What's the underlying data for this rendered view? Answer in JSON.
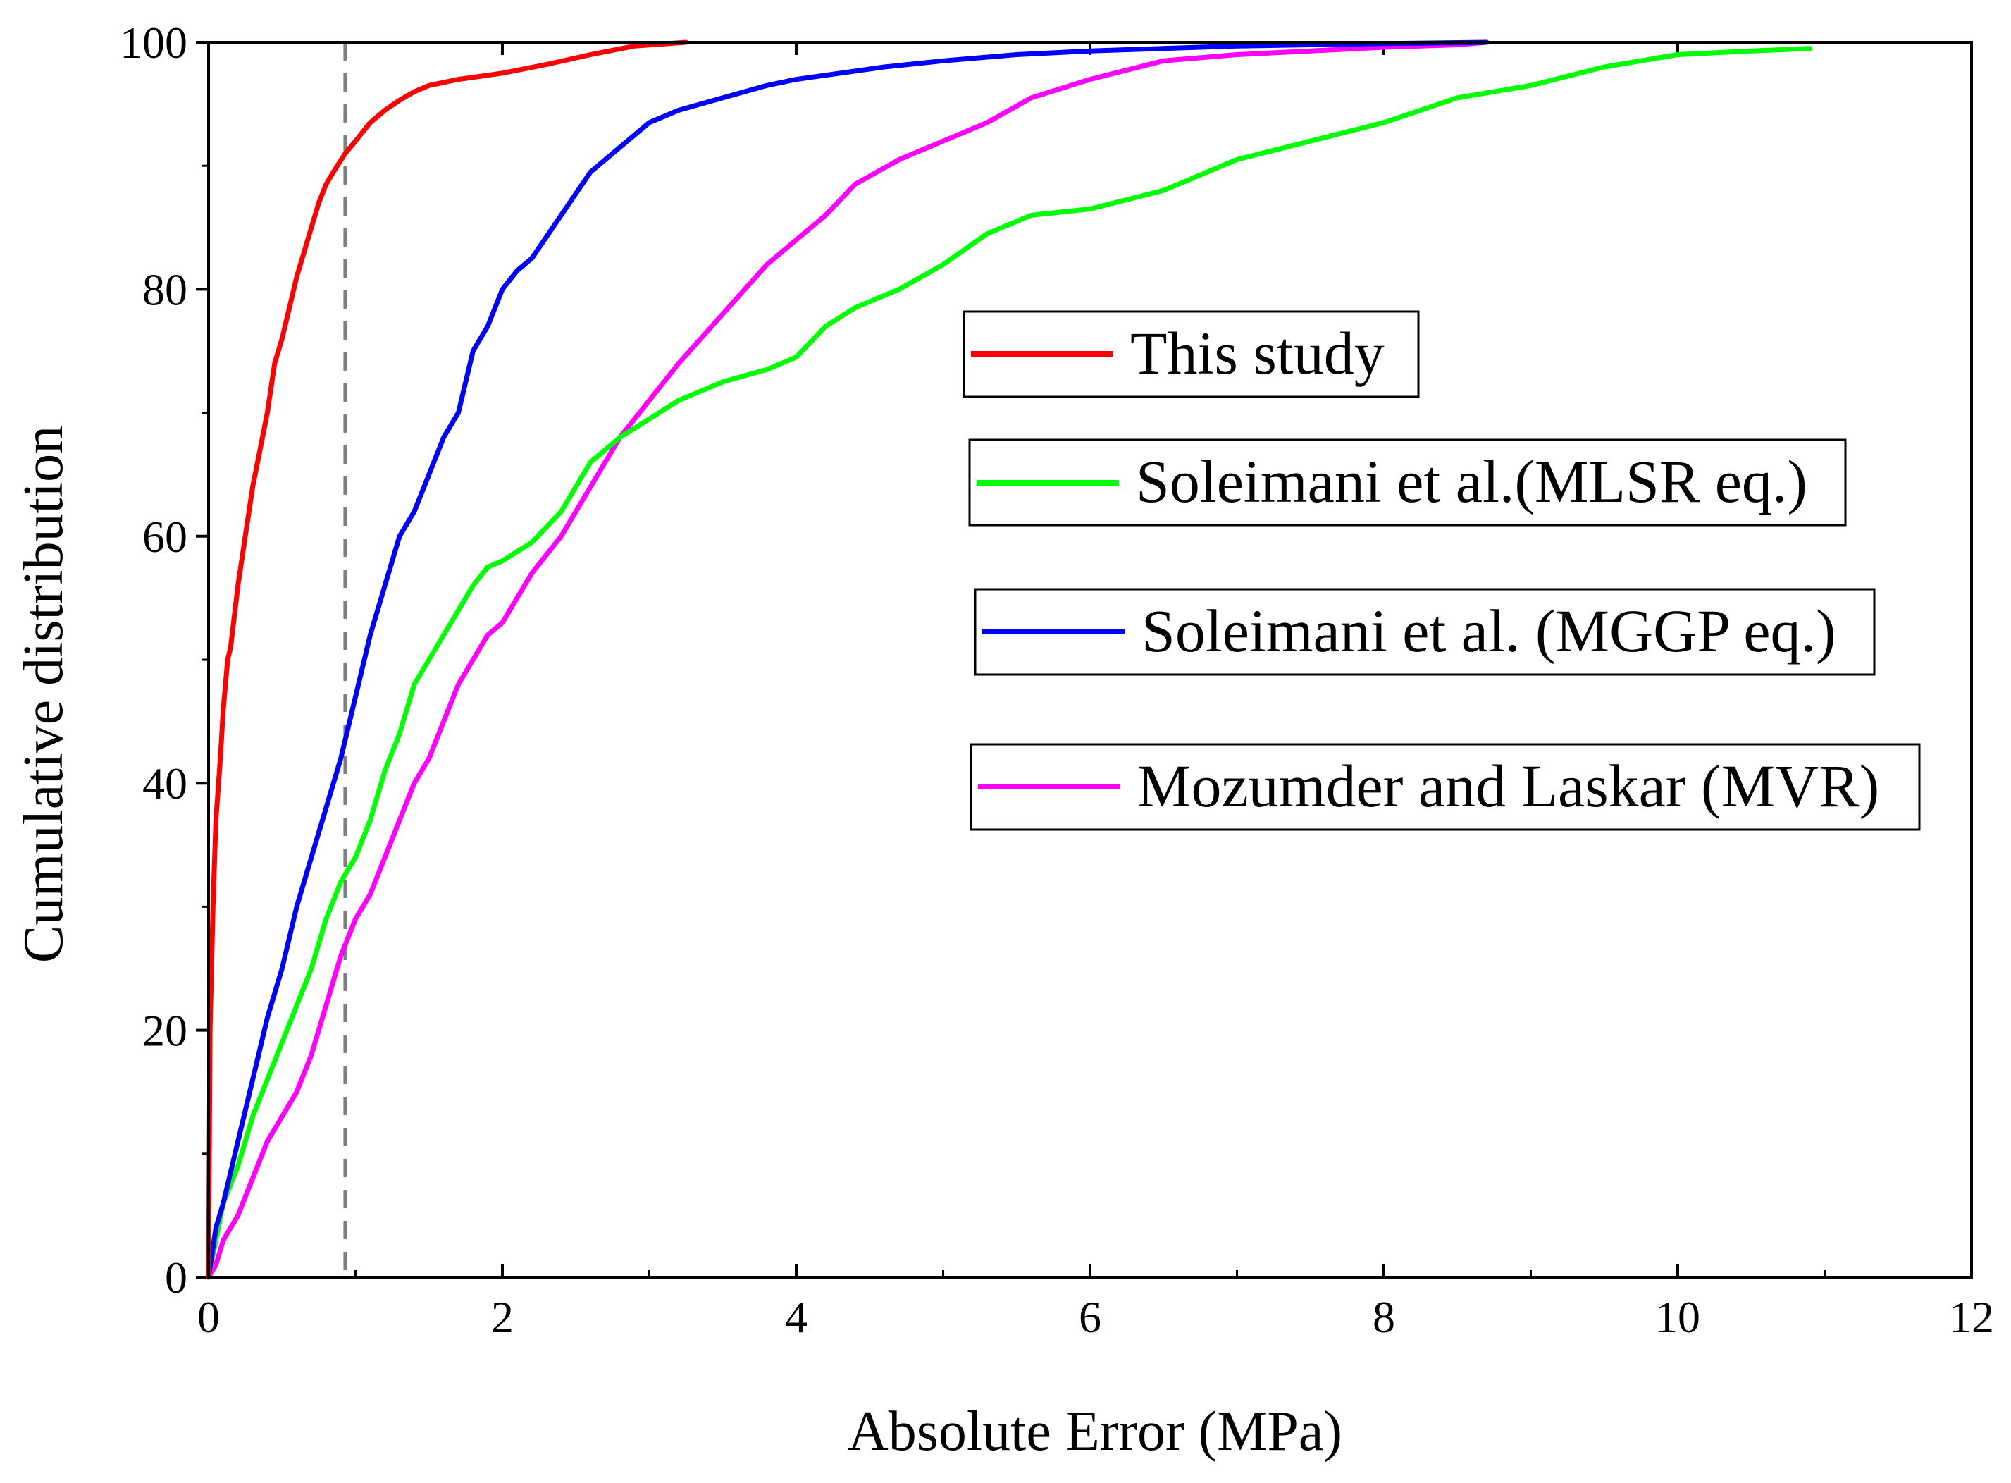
{
  "chart_data": {
    "type": "line",
    "title": "",
    "xlabel": "Absolute Error (MPa)",
    "ylabel": "Cumulative distribution",
    "xlim": [
      0,
      12
    ],
    "ylim": [
      0,
      100
    ],
    "xticks": [
      0,
      2,
      4,
      6,
      8,
      10,
      12
    ],
    "yticks": [
      0,
      20,
      40,
      60,
      80,
      100
    ],
    "grid": false,
    "legend_position": "right-center",
    "reference_line": {
      "x": 0.93,
      "style": "dashed",
      "color": "#808080"
    },
    "series": [
      {
        "name": "This study",
        "color": "#ff0000",
        "x": [
          0,
          0.01,
          0.03,
          0.05,
          0.08,
          0.1,
          0.13,
          0.15,
          0.2,
          0.25,
          0.3,
          0.35,
          0.4,
          0.45,
          0.5,
          0.55,
          0.6,
          0.65,
          0.7,
          0.75,
          0.8,
          0.85,
          0.93,
          1.0,
          1.1,
          1.2,
          1.3,
          1.4,
          1.5,
          1.7,
          2.0,
          2.3,
          2.6,
          2.9,
          3.25
        ],
        "y": [
          0,
          20,
          30,
          37,
          42,
          46,
          50,
          51,
          56,
          60,
          64,
          67,
          70,
          74,
          76,
          78.5,
          81,
          83,
          85,
          87,
          88.5,
          89.5,
          91,
          92,
          93.5,
          94.5,
          95.3,
          96,
          96.5,
          97,
          97.5,
          98.2,
          99,
          99.7,
          100
        ]
      },
      {
        "name": "Soleimani et al.(MLSR eq.)",
        "color": "#00ff00",
        "x": [
          0,
          0.05,
          0.1,
          0.2,
          0.3,
          0.4,
          0.5,
          0.6,
          0.7,
          0.8,
          0.9,
          1.0,
          1.1,
          1.2,
          1.3,
          1.4,
          1.5,
          1.6,
          1.7,
          1.8,
          1.9,
          2.0,
          2.2,
          2.4,
          2.6,
          2.8,
          3.0,
          3.2,
          3.5,
          3.8,
          4.0,
          4.2,
          4.4,
          4.7,
          5.0,
          5.3,
          5.6,
          6.0,
          6.5,
          7.0,
          7.5,
          8.0,
          8.5,
          9.0,
          9.5,
          10.0,
          10.5,
          10.9
        ],
        "y": [
          0,
          3,
          6,
          9,
          13,
          16,
          19,
          22,
          25,
          29,
          32,
          34,
          37,
          41,
          44,
          48,
          50,
          52,
          54,
          56,
          57.5,
          58,
          59.5,
          62,
          66,
          68,
          69.5,
          71,
          72.5,
          73.5,
          74.5,
          77,
          78.5,
          80,
          82,
          84.5,
          86,
          86.5,
          88,
          90.5,
          92,
          93.5,
          95.5,
          96.5,
          98,
          99,
          99.3,
          99.5
        ]
      },
      {
        "name": "Soleimani et al. (MGGP eq.)",
        "color": "#0000ff",
        "x": [
          0,
          0.05,
          0.1,
          0.2,
          0.3,
          0.4,
          0.5,
          0.6,
          0.7,
          0.8,
          0.9,
          1.0,
          1.1,
          1.2,
          1.3,
          1.4,
          1.5,
          1.6,
          1.7,
          1.8,
          1.9,
          2.0,
          2.1,
          2.2,
          2.4,
          2.6,
          2.8,
          3.0,
          3.2,
          3.5,
          3.8,
          4.0,
          4.3,
          4.6,
          5.0,
          5.5,
          6.0,
          7.0,
          8.0,
          8.7
        ],
        "y": [
          0,
          4,
          6,
          11,
          16,
          21,
          25,
          30,
          34,
          38,
          42,
          47,
          52,
          56,
          60,
          62,
          65,
          68,
          70,
          75,
          77,
          80,
          81.5,
          82.5,
          86,
          89.5,
          91.5,
          93.5,
          94.5,
          95.5,
          96.5,
          97,
          97.5,
          98,
          98.5,
          99,
          99.3,
          99.7,
          99.9,
          100
        ]
      },
      {
        "name": "Mozumder and Laskar (MVR)",
        "color": "#ff00ff",
        "x": [
          0,
          0.05,
          0.1,
          0.2,
          0.3,
          0.4,
          0.5,
          0.6,
          0.7,
          0.8,
          0.9,
          1.0,
          1.1,
          1.2,
          1.3,
          1.4,
          1.5,
          1.6,
          1.7,
          1.8,
          1.9,
          2.0,
          2.2,
          2.4,
          2.6,
          2.8,
          3.0,
          3.2,
          3.5,
          3.8,
          4.0,
          4.2,
          4.4,
          4.7,
          5.0,
          5.3,
          5.6,
          6.0,
          6.5,
          7.0,
          7.5,
          8.0,
          8.5,
          8.7
        ],
        "y": [
          0,
          1,
          3,
          5,
          8,
          11,
          13,
          15,
          18,
          22,
          26,
          29,
          31,
          34,
          37,
          40,
          42,
          45,
          48,
          50,
          52,
          53,
          57,
          60,
          64,
          68,
          71,
          74,
          78,
          82,
          84,
          86,
          88.5,
          90.5,
          92,
          93.5,
          95.5,
          97,
          98.5,
          99,
          99.3,
          99.6,
          99.8,
          100
        ]
      }
    ]
  }
}
